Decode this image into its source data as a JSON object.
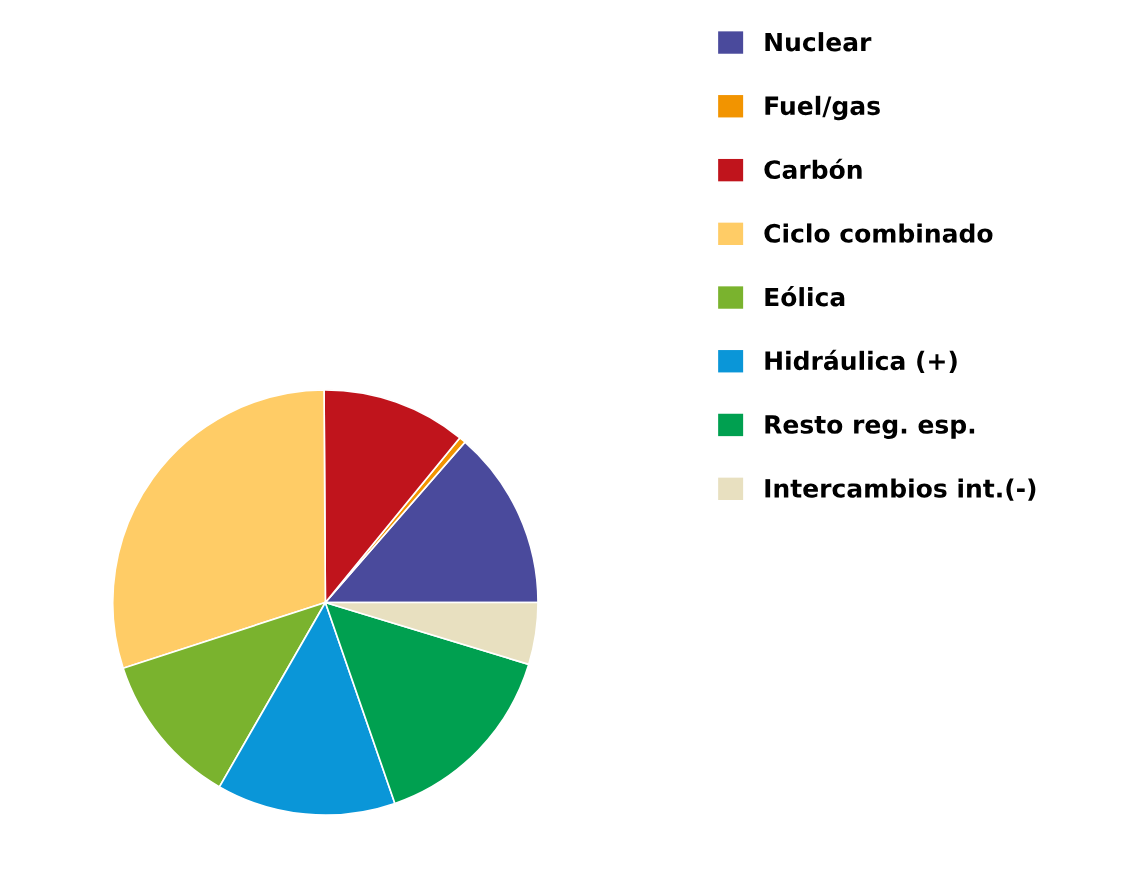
{
  "chart_data": {
    "type": "pie",
    "categories": [
      "Nuclear",
      "Fuel/gas",
      "Carbón",
      "Ciclo combinado",
      "Eólica",
      "Hidráulica (+)",
      "Resto reg. esp.",
      "Intercambios int.(-)"
    ],
    "values": [
      13.6,
      0.5,
      11,
      29.9,
      11.7,
      13.6,
      15,
      4.7
    ],
    "colors": [
      "#4a4a9c",
      "#f29400",
      "#c0141c",
      "#ffcc66",
      "#7ab32e",
      "#0a96d8",
      "#00a050",
      "#e8e0c0"
    ],
    "legend": "right"
  }
}
